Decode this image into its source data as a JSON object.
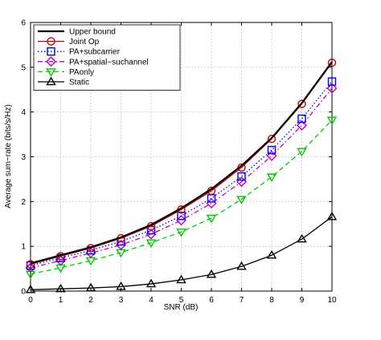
{
  "chart_data": {
    "type": "line",
    "title": "",
    "xlabel": "SNR (dB)",
    "ylabel": "Average sum−rate (bits/s/Hz)",
    "x": [
      0,
      1,
      2,
      3,
      4,
      5,
      6,
      7,
      8,
      9,
      10
    ],
    "xlim": [
      0,
      10
    ],
    "ylim": [
      0,
      6
    ],
    "xticks": [
      "0",
      "1",
      "2",
      "3",
      "4",
      "5",
      "6",
      "7",
      "8",
      "9",
      "10"
    ],
    "yticks": [
      "0",
      "1",
      "2",
      "3",
      "4",
      "5",
      "6"
    ],
    "grid": true,
    "legend_position": "top-left",
    "series": [
      {
        "name": "Upper bound",
        "color": "#000000",
        "marker": "none",
        "line": "solid",
        "values": [
          0.62,
          0.8,
          0.98,
          1.2,
          1.48,
          1.85,
          2.28,
          2.8,
          3.42,
          4.2,
          5.12
        ]
      },
      {
        "name": "Joint Op",
        "color": "#cc0000",
        "marker": "circle",
        "line": "solid",
        "values": [
          0.6,
          0.78,
          0.96,
          1.18,
          1.45,
          1.82,
          2.24,
          2.76,
          3.4,
          4.18,
          5.1
        ]
      },
      {
        "name": "PA+subcarrier",
        "color": "#0000ff",
        "marker": "square",
        "line": "dotted",
        "values": [
          0.57,
          0.74,
          0.91,
          1.11,
          1.36,
          1.68,
          2.07,
          2.56,
          3.15,
          3.85,
          4.68
        ]
      },
      {
        "name": "PA+spatial−suchannel",
        "color": "#bf00bf",
        "marker": "diamond",
        "line": "dashdot",
        "values": [
          0.52,
          0.68,
          0.85,
          1.03,
          1.27,
          1.58,
          1.96,
          2.44,
          3.02,
          3.7,
          4.53
        ]
      },
      {
        "name": "PAonly",
        "color": "#00cc00",
        "marker": "triangle-down",
        "line": "dashed",
        "values": [
          0.38,
          0.52,
          0.68,
          0.86,
          1.08,
          1.32,
          1.63,
          2.05,
          2.55,
          3.12,
          3.82
        ]
      },
      {
        "name": "Static",
        "color": "#000000",
        "marker": "triangle-up",
        "line": "solid",
        "values": [
          0.03,
          0.05,
          0.07,
          0.1,
          0.16,
          0.25,
          0.37,
          0.55,
          0.8,
          1.16,
          1.66
        ]
      }
    ]
  }
}
